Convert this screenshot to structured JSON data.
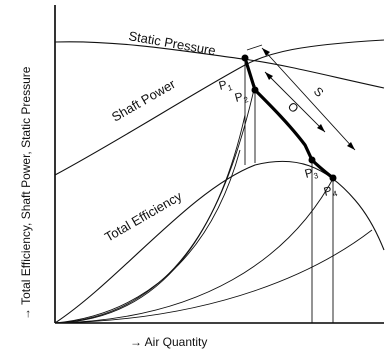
{
  "labels": {
    "static_pressure": "Static Pressure",
    "shaft_power": "Shaft Power",
    "total_efficiency": "Total Efficiency",
    "y_axis": "→ Total Efficiency, Shaft Power, Static Pressure",
    "x_axis": "→ Air Quantity",
    "o_segment": "O",
    "s_segment": "S"
  },
  "points": {
    "p1": "P",
    "p1_sub": "1",
    "p2": "P",
    "p2_sub": "2",
    "p3": "P",
    "p3_sub": "3",
    "p4": "P",
    "p4_sub": "4"
  }
}
